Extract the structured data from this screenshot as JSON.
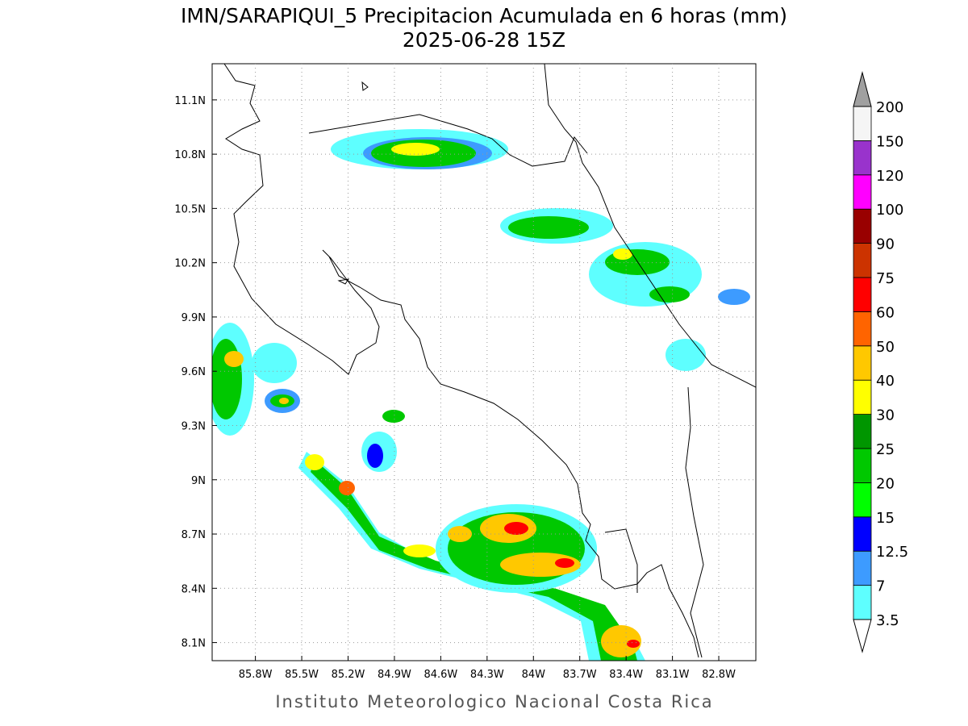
{
  "title": "IMN/SARAPIQUI_5 Precipitacion Acumulada en 6 horas (mm)",
  "subtitle": "2025-06-28 15Z",
  "footer": "Instituto Meteorologico Nacional Costa Rica",
  "map": {
    "xlim": [
      -86.08,
      -82.56
    ],
    "ylim": [
      8.0,
      11.3
    ],
    "xticks": [
      {
        "value": -85.8,
        "label": "85.8W"
      },
      {
        "value": -85.5,
        "label": "85.5W"
      },
      {
        "value": -85.2,
        "label": "85.2W"
      },
      {
        "value": -84.9,
        "label": "84.9W"
      },
      {
        "value": -84.6,
        "label": "84.6W"
      },
      {
        "value": -84.3,
        "label": "84.3W"
      },
      {
        "value": -84.0,
        "label": "84W"
      },
      {
        "value": -83.7,
        "label": "83.7W"
      },
      {
        "value": -83.4,
        "label": "83.4W"
      },
      {
        "value": -83.1,
        "label": "83.1W"
      },
      {
        "value": -82.8,
        "label": "82.8W"
      }
    ],
    "yticks": [
      {
        "value": 8.1,
        "label": "8.1N"
      },
      {
        "value": 8.4,
        "label": "8.4N"
      },
      {
        "value": 8.7,
        "label": "8.7N"
      },
      {
        "value": 9.0,
        "label": "9N"
      },
      {
        "value": 9.3,
        "label": "9.3N"
      },
      {
        "value": 9.6,
        "label": "9.6N"
      },
      {
        "value": 9.9,
        "label": "9.9N"
      },
      {
        "value": 10.2,
        "label": "10.2N"
      },
      {
        "value": 10.5,
        "label": "10.5N"
      },
      {
        "value": 10.8,
        "label": "10.8N"
      },
      {
        "value": 11.1,
        "label": "11.1N"
      }
    ],
    "grid": true
  },
  "colorbar": {
    "levels": [
      3.5,
      7,
      12.5,
      15,
      20,
      25,
      30,
      40,
      50,
      60,
      75,
      90,
      100,
      120,
      150,
      200
    ],
    "colors": [
      "#5effff",
      "#3d9bff",
      "#0000ff",
      "#00ff00",
      "#00c800",
      "#009600",
      "#ffff00",
      "#ffc800",
      "#ff6400",
      "#ff0000",
      "#cc3300",
      "#990000",
      "#ff00ff",
      "#9933cc",
      "#f5f5f5"
    ],
    "under_color": "#ffffff",
    "over_color": "#a0a0a0"
  }
}
